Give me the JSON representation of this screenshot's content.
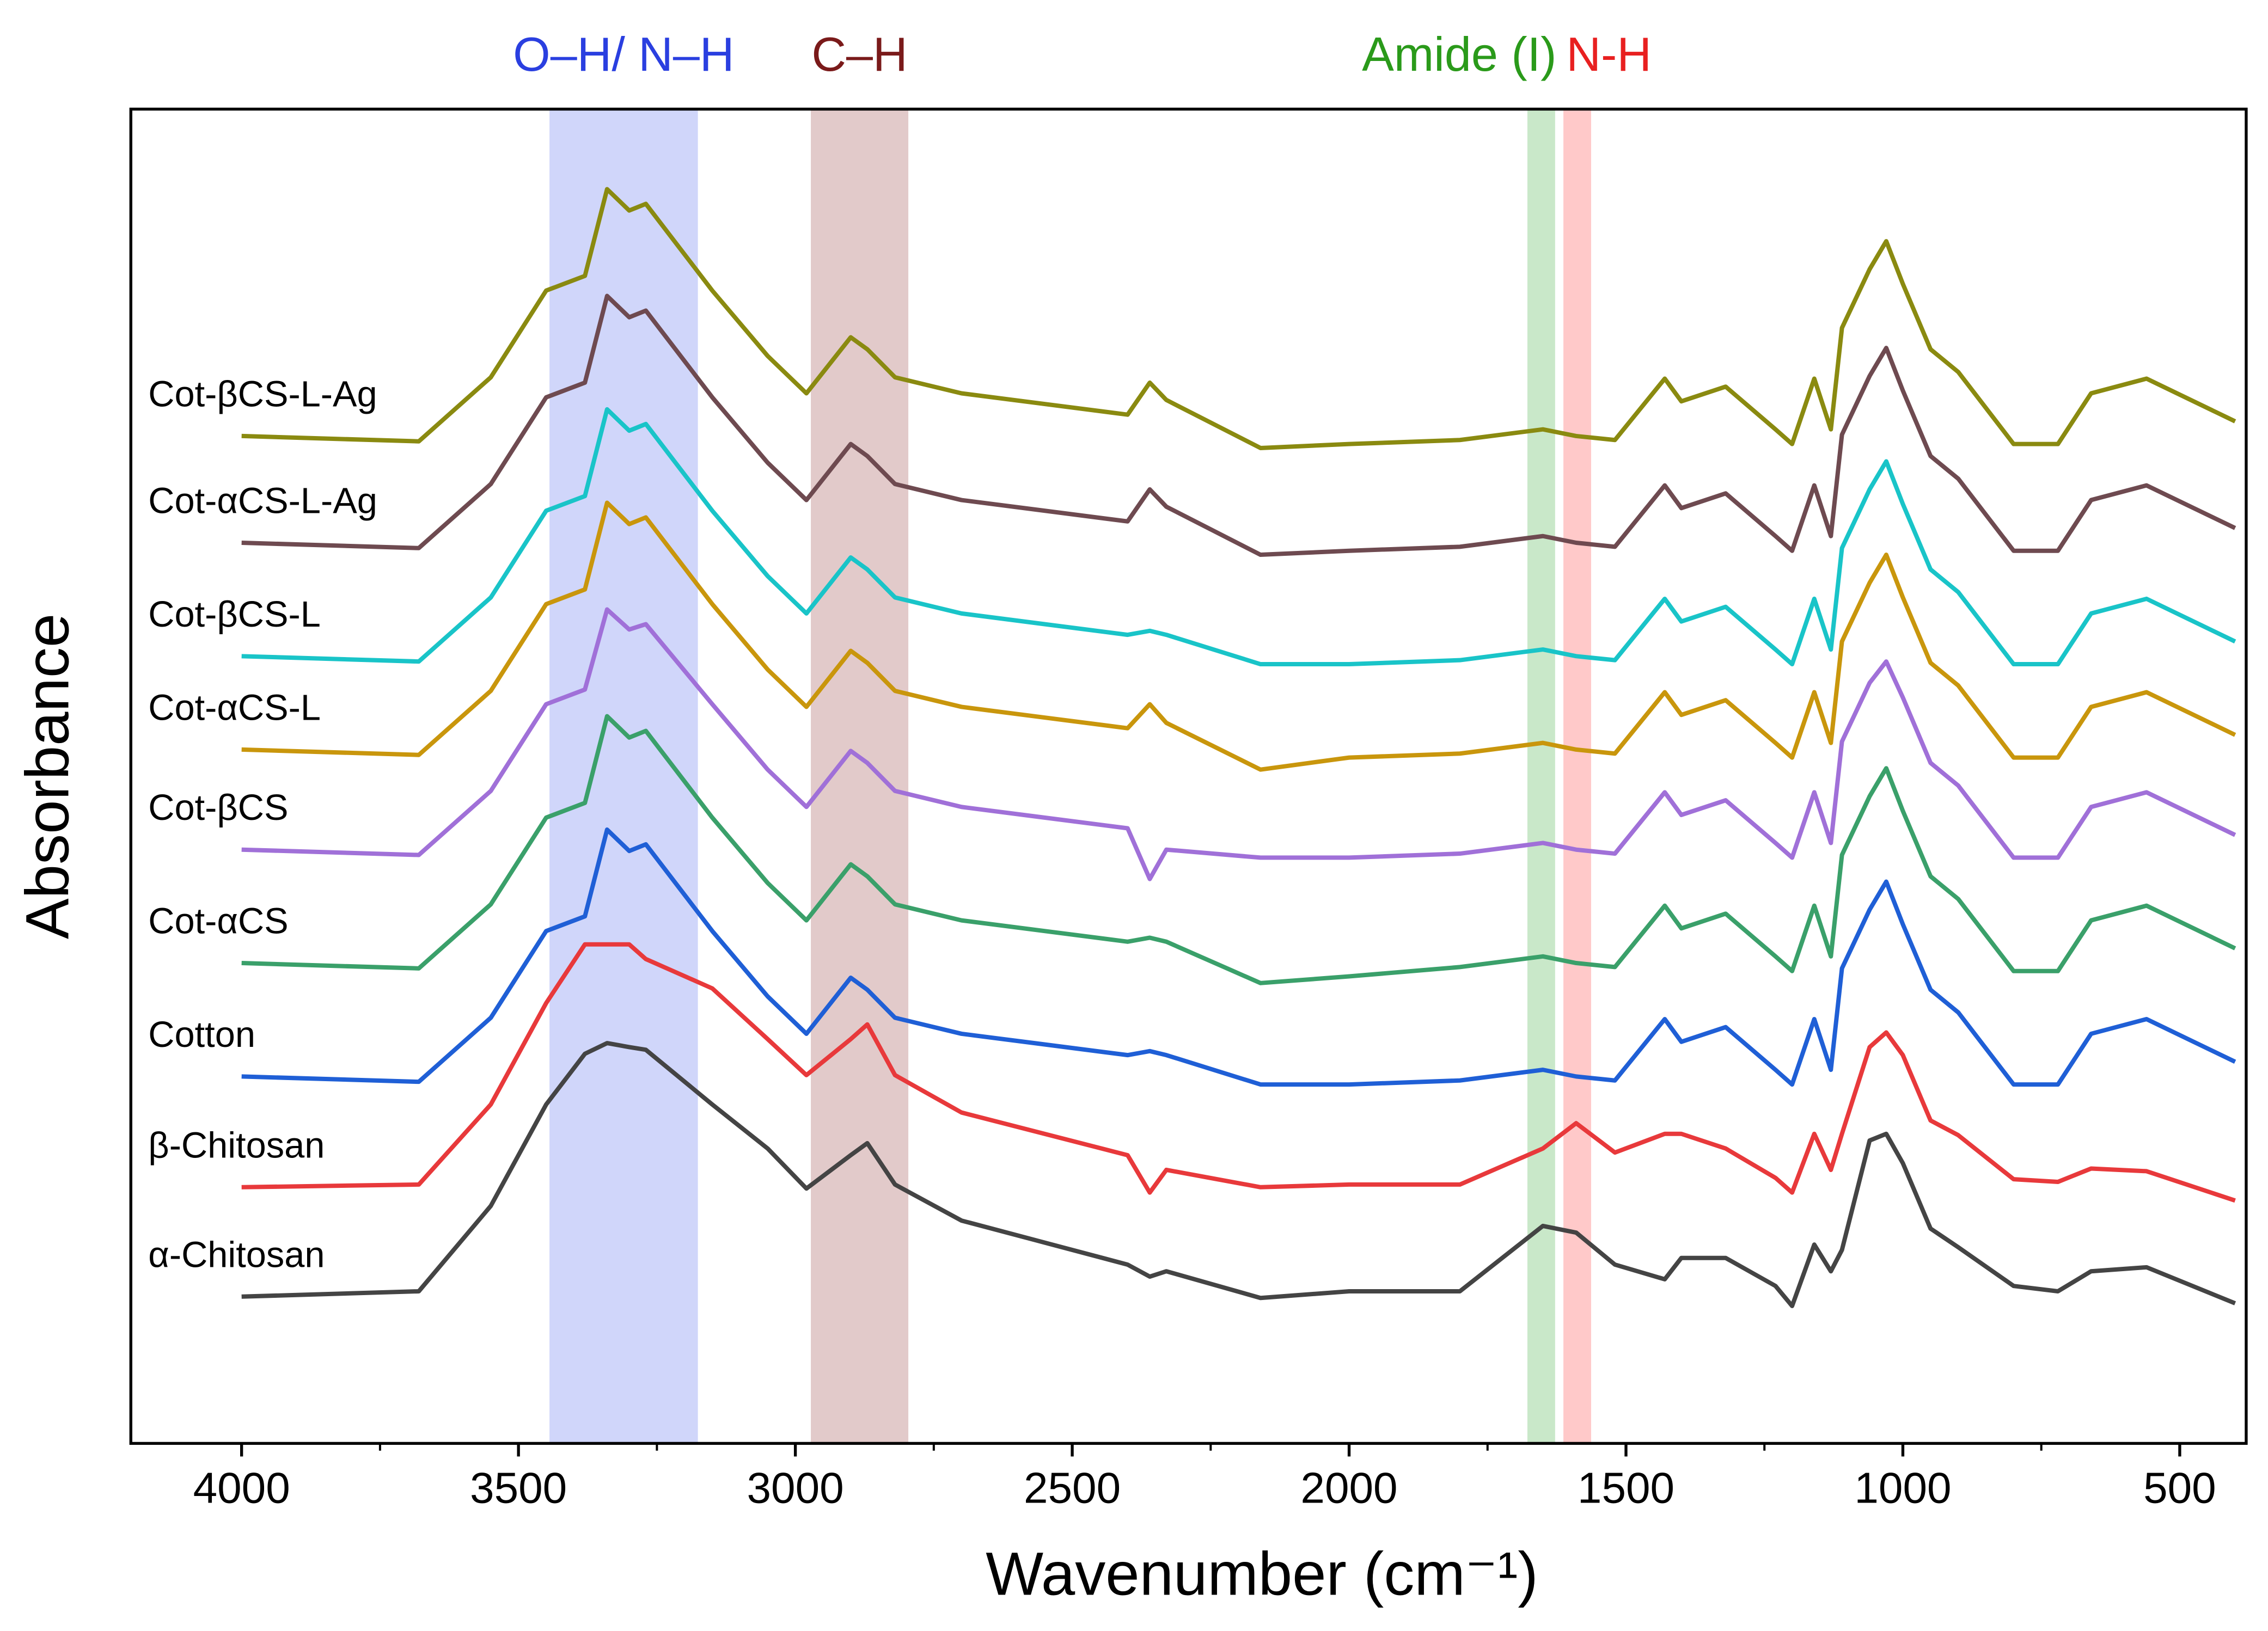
{
  "chart_data": {
    "type": "line",
    "xlabel": "Wavenumber (cm⁻¹)",
    "ylabel": "Absorbance",
    "xlim": [
      4200,
      380
    ],
    "ylim": [
      0,
      100
    ],
    "xticks": [
      4000,
      3500,
      3000,
      2500,
      2000,
      1500,
      1000,
      500
    ],
    "xminorticks": [
      3750,
      3250,
      2750,
      2250,
      1750,
      1250,
      750
    ],
    "bands": [
      {
        "label": "O–H/ N–H",
        "range": [
          3444,
          3176
        ],
        "color": "rgba(100,120,240,0.3)",
        "text_color": "#2a3fe0"
      },
      {
        "label": "C–H",
        "range": [
          2972,
          2796
        ],
        "color": "rgba(160,80,80,0.3)",
        "text_color": "#7a1a1a"
      },
      {
        "label": "Amide (I)",
        "range": [
          1678,
          1628
        ],
        "color": "rgba(100,190,100,0.35)",
        "text_color": "#2a9a1a"
      },
      {
        "label": "N-H",
        "range": [
          1613,
          1563
        ],
        "color": "rgba(255,100,100,0.35)",
        "text_color": "#e82020"
      }
    ],
    "x": [
      4000,
      3680,
      3550,
      3450,
      3380,
      3340,
      3300,
      3270,
      3150,
      3050,
      2980,
      2900,
      2870,
      2820,
      2700,
      2400,
      2360,
      2330,
      2160,
      2000,
      1800,
      1650,
      1590,
      1520,
      1430,
      1400,
      1320,
      1230,
      1200,
      1160,
      1130,
      1110,
      1060,
      1030,
      1000,
      950,
      900,
      800,
      720,
      660,
      560,
      400
    ],
    "series": [
      {
        "name": "α-Chitosan",
        "color": "#444444",
        "values": [
          11.0,
          11.4,
          17.8,
          25.4,
          29.2,
          30.0,
          29.7,
          29.5,
          25.4,
          22.1,
          19.1,
          21.6,
          22.5,
          19.4,
          16.7,
          13.4,
          12.5,
          12.9,
          10.9,
          11.4,
          11.4,
          16.3,
          15.8,
          13.4,
          12.3,
          13.9,
          13.9,
          11.8,
          10.3,
          14.9,
          12.9,
          14.5,
          22.7,
          23.2,
          21.0,
          16.1,
          14.7,
          11.8,
          11.4,
          12.9,
          13.2,
          10.5
        ]
      },
      {
        "name": "β-Chitosan",
        "color": "#e8393b",
        "values": [
          19.2,
          19.4,
          25.4,
          33.0,
          37.4,
          37.4,
          37.4,
          36.3,
          34.1,
          30.3,
          27.6,
          30.3,
          31.4,
          27.6,
          24.8,
          21.6,
          18.8,
          20.5,
          19.2,
          19.4,
          19.4,
          22.1,
          24.0,
          21.8,
          23.2,
          23.2,
          22.1,
          19.9,
          18.8,
          23.2,
          20.5,
          23.2,
          29.7,
          30.8,
          29.1,
          24.2,
          23.1,
          19.8,
          19.6,
          20.6,
          20.4,
          18.2
        ]
      },
      {
        "name": "Cotton",
        "color": "#1f5fd6",
        "values": [
          27.5,
          27.1,
          31.9,
          38.4,
          39.5,
          46.0,
          44.4,
          44.9,
          38.4,
          33.5,
          30.7,
          34.9,
          34.0,
          31.9,
          30.7,
          29.1,
          29.4,
          29.1,
          26.9,
          26.9,
          27.2,
          28.0,
          27.5,
          27.2,
          31.8,
          30.1,
          31.2,
          28.0,
          26.9,
          31.8,
          28.0,
          35.6,
          40.0,
          42.1,
          38.9,
          34.0,
          32.3,
          26.9,
          26.9,
          30.7,
          31.8,
          28.6
        ]
      },
      {
        "name": "Cot-αCS",
        "color": "#3aa06a",
        "values": [
          36.0,
          35.6,
          40.4,
          46.9,
          48.0,
          54.5,
          52.9,
          53.4,
          46.9,
          42.0,
          39.2,
          43.4,
          42.5,
          40.4,
          39.2,
          37.6,
          37.9,
          37.6,
          34.5,
          35.0,
          35.7,
          36.5,
          36.0,
          35.7,
          40.3,
          38.6,
          39.7,
          36.5,
          35.4,
          40.3,
          36.5,
          44.1,
          48.5,
          50.6,
          47.4,
          42.5,
          40.8,
          35.4,
          35.4,
          39.2,
          40.3,
          37.1
        ]
      },
      {
        "name": "Cot-βCS",
        "color": "#a070d8",
        "values": [
          44.5,
          44.1,
          48.9,
          55.4,
          56.5,
          62.5,
          61.0,
          61.4,
          55.4,
          50.5,
          47.7,
          51.9,
          51.0,
          48.9,
          47.7,
          46.1,
          42.3,
          44.5,
          43.9,
          43.9,
          44.2,
          45.0,
          44.5,
          44.2,
          48.8,
          47.1,
          48.2,
          45.0,
          43.9,
          48.8,
          45.0,
          52.6,
          57.0,
          58.6,
          55.9,
          51.0,
          49.3,
          43.9,
          43.9,
          47.7,
          48.8,
          45.6
        ]
      },
      {
        "name": "Cot-αCS-L",
        "color": "#c9960c",
        "values": [
          52.0,
          51.6,
          56.4,
          62.9,
          64.0,
          70.5,
          68.9,
          69.4,
          62.9,
          58.0,
          55.2,
          59.4,
          58.5,
          56.4,
          55.2,
          53.6,
          55.4,
          54.0,
          50.5,
          51.4,
          51.7,
          52.5,
          52.0,
          51.7,
          56.3,
          54.6,
          55.7,
          52.5,
          51.4,
          56.3,
          52.5,
          60.1,
          64.5,
          66.6,
          63.4,
          58.5,
          56.8,
          51.4,
          51.4,
          55.2,
          56.3,
          53.1
        ]
      },
      {
        "name": "Cot-βCS-L",
        "color": "#19c4c8",
        "values": [
          59.0,
          58.6,
          63.4,
          69.9,
          71.0,
          77.5,
          75.9,
          76.4,
          69.9,
          65.0,
          62.2,
          66.4,
          65.5,
          63.4,
          62.2,
          60.6,
          60.9,
          60.6,
          58.4,
          58.4,
          58.7,
          59.5,
          59.0,
          58.7,
          63.3,
          61.6,
          62.7,
          59.5,
          58.4,
          63.3,
          59.5,
          67.1,
          71.5,
          73.6,
          70.4,
          65.5,
          63.8,
          58.4,
          58.4,
          62.2,
          63.3,
          60.1
        ]
      },
      {
        "name": "Cot-αCS-L-Ag",
        "color": "#6e4a50",
        "values": [
          67.5,
          67.1,
          71.9,
          78.4,
          79.5,
          86.0,
          84.4,
          84.9,
          78.4,
          73.5,
          70.7,
          74.9,
          74.0,
          71.9,
          70.7,
          69.1,
          71.5,
          70.2,
          66.6,
          66.9,
          67.2,
          68.0,
          67.5,
          67.2,
          71.8,
          70.1,
          71.2,
          68.0,
          66.9,
          71.8,
          68.0,
          75.6,
          80.0,
          82.1,
          78.9,
          74.0,
          72.3,
          66.9,
          66.9,
          70.7,
          71.8,
          68.6
        ]
      },
      {
        "name": "Cot-βCS-L-Ag",
        "color": "#8a8a10",
        "values": [
          75.5,
          75.1,
          79.9,
          86.4,
          87.5,
          94.0,
          92.4,
          92.9,
          86.4,
          81.5,
          78.7,
          82.9,
          82.0,
          79.9,
          78.7,
          77.1,
          79.5,
          78.2,
          74.6,
          74.9,
          75.2,
          76.0,
          75.5,
          75.2,
          79.8,
          78.1,
          79.2,
          76.0,
          74.9,
          79.8,
          76.0,
          83.6,
          88.0,
          90.1,
          86.9,
          82.0,
          80.3,
          74.9,
          74.9,
          78.7,
          79.8,
          76.6
        ]
      }
    ]
  }
}
